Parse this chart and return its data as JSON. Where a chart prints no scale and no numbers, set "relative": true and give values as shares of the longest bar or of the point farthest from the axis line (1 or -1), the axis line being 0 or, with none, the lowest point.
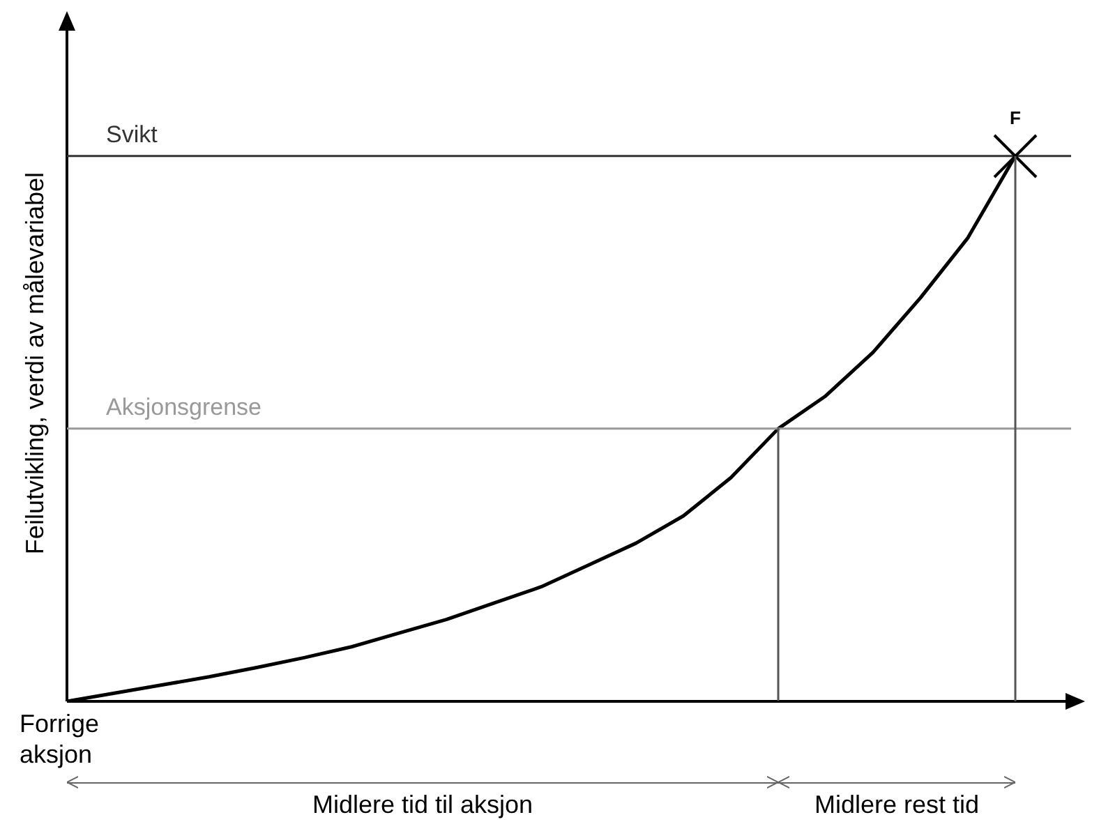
{
  "chart_data": {
    "type": "line",
    "relative": true,
    "ylabel": "Feilutvikling, verdi av målevariabel",
    "categories": [
      null,
      null,
      null,
      null,
      null,
      null,
      null,
      null,
      null,
      null,
      null,
      null,
      null,
      null,
      null,
      null,
      null,
      null,
      null,
      null,
      null
    ],
    "series": [
      {
        "color": "#000000",
        "values": [
          0,
          0.015,
          0.03,
          0.045,
          0.062,
          0.08,
          0.1,
          0.125,
          0.15,
          0.18,
          0.21,
          0.25,
          0.29,
          0.34,
          0.41,
          0.5,
          0.56,
          0.64,
          0.74,
          0.85,
          1
        ]
      }
    ],
    "ref_lines": [
      {
        "axis": "y",
        "value": 1,
        "label": "Svikt",
        "color": "#333333"
      },
      {
        "axis": "y",
        "value": 0.5,
        "label": "Aksjonsgrense",
        "color": "#999999"
      }
    ],
    "annotations": [
      "F",
      "Forrige aksjon",
      "Midlere tid til aksjon",
      "Midlere rest tid"
    ],
    "legend": false
  }
}
